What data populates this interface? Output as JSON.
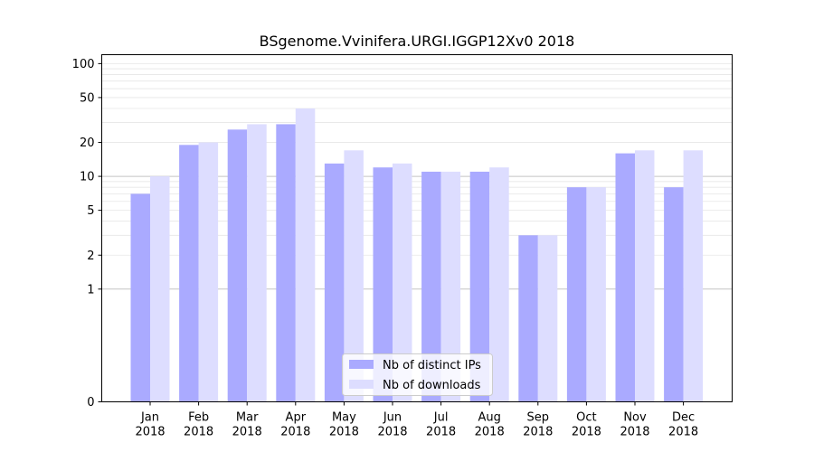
{
  "chart_data": {
    "type": "bar",
    "title": "BSgenome.Vvinifera.URGI.IGGP12Xv0 2018",
    "xlabel": "",
    "ylabel": "",
    "y_scale": "symlog",
    "ylim": [
      0,
      120
    ],
    "y_ticks": [
      0,
      1,
      2,
      5,
      10,
      20,
      50,
      100
    ],
    "y_tick_labels": [
      "0",
      "1",
      "2",
      "5",
      "10",
      "20",
      "50",
      "100"
    ],
    "grid": true,
    "legend_position": "bottom-center",
    "categories": [
      "Jan\n2018",
      "Feb\n2018",
      "Mar\n2018",
      "Apr\n2018",
      "May\n2018",
      "Jun\n2018",
      "Jul\n2018",
      "Aug\n2018",
      "Sep\n2018",
      "Oct\n2018",
      "Nov\n2018",
      "Dec\n2018"
    ],
    "series": [
      {
        "name": "Nb of distinct IPs",
        "color": "#aaaaff",
        "values": [
          7,
          19,
          26,
          29,
          13,
          12,
          11,
          11,
          3,
          8,
          16,
          8
        ]
      },
      {
        "name": "Nb of downloads",
        "color": "#ddddff",
        "values": [
          10,
          20,
          29,
          40,
          17,
          13,
          11,
          12,
          3,
          8,
          17,
          17
        ]
      }
    ]
  }
}
